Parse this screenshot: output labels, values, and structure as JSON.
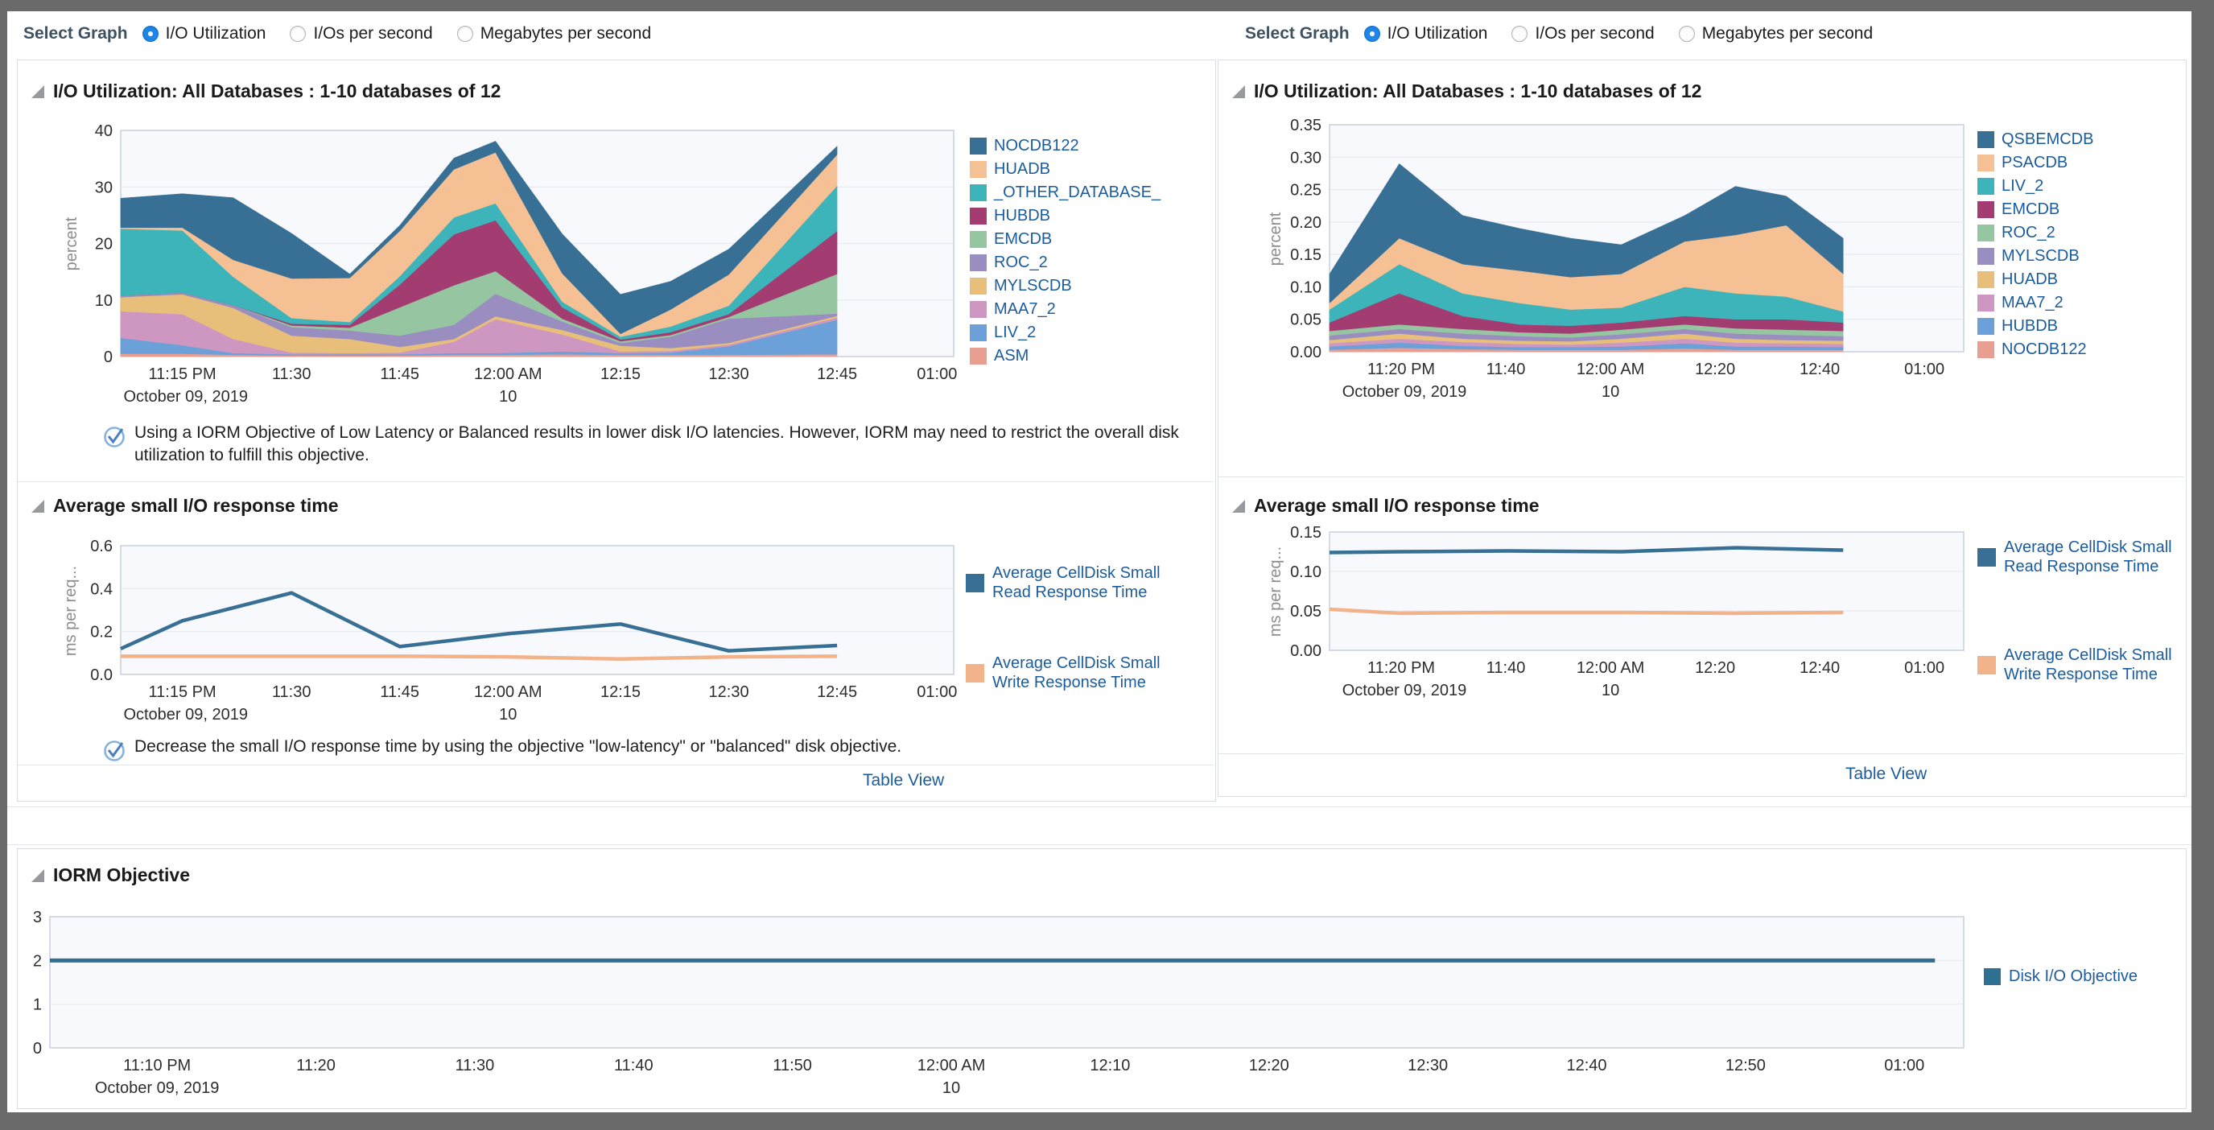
{
  "select_graph": {
    "label": "Select Graph",
    "options": [
      "I/O Utilization",
      "I/Os per second",
      "Megabytes per second"
    ],
    "selected": "I/O Utilization"
  },
  "sections": {
    "io_utilization_title": "I/O Utilization: All Databases : 1-10 databases of 12",
    "response_time_title": "Average small I/O response time",
    "iorm_title": "IORM Objective"
  },
  "notes": {
    "io_note": "Using a IORM Objective of Low Latency or Balanced results in lower disk I/O latencies. However, IORM may need to restrict the overall disk utilization to fulfill this objective.",
    "response_note": "Decrease the small I/O response time by using the objective \"low-latency\" or \"balanced\" disk objective."
  },
  "links": {
    "table_view": "Table View"
  },
  "colors": {
    "accent_blue": "#1e86e8",
    "legend_text": "#1b5c9f",
    "plot_bg": "#f8f9fd",
    "plot_border": "#c8d1de",
    "gridline": "#e3e7ef"
  },
  "chart_data": [
    {
      "id": "io-util-left",
      "type": "area",
      "stacked": true,
      "title": "I/O Utilization: All Databases : 1-10 databases of 12",
      "ylabel": "percent",
      "ylim": [
        0,
        40
      ],
      "yticks": [
        {
          "v": 0,
          "label": "0"
        },
        {
          "v": 10,
          "label": "10"
        },
        {
          "v": 20,
          "label": "20"
        },
        {
          "v": 30,
          "label": "30"
        },
        {
          "v": 40,
          "label": "40"
        }
      ],
      "xticks": [
        {
          "f": 0.074,
          "label": "11:15 PM"
        },
        {
          "f": 0.205,
          "label": "11:30"
        },
        {
          "f": 0.335,
          "label": "11:45"
        },
        {
          "f": 0.465,
          "label": "12:00 AM"
        },
        {
          "f": 0.6,
          "label": "12:15"
        },
        {
          "f": 0.73,
          "label": "12:30"
        },
        {
          "f": 0.86,
          "label": "12:45"
        },
        {
          "f": 0.98,
          "label": "01:00"
        }
      ],
      "xsub": [
        {
          "f": 0.078,
          "label": "October 09, 2019"
        },
        {
          "f": 0.465,
          "label": "10"
        }
      ],
      "x": [
        0,
        0.074,
        0.135,
        0.205,
        0.275,
        0.335,
        0.4,
        0.45,
        0.53,
        0.6,
        0.66,
        0.73,
        0.86
      ],
      "series": [
        {
          "name": "ASM",
          "color": "#e89e91",
          "values": [
            0.5,
            0.5,
            0.3,
            0.2,
            0.2,
            0.2,
            0.3,
            0.3,
            0.4,
            0.3,
            0.3,
            0.3,
            0.4
          ]
        },
        {
          "name": "LIV_2",
          "color": "#6ba0d8",
          "values": [
            2.8,
            1.5,
            0.3,
            0.2,
            0.2,
            0.2,
            0.3,
            0.3,
            0.5,
            0.3,
            0.4,
            1.5,
            6.1
          ]
        },
        {
          "name": "MAA7_2",
          "color": "#cd97c1",
          "values": [
            4.7,
            5.5,
            2.5,
            0.3,
            0.2,
            0.3,
            2.0,
            6.0,
            3.0,
            0.3,
            0.3,
            0.3,
            0.4
          ]
        },
        {
          "name": "MYLSCDB",
          "color": "#e7bf7b",
          "values": [
            2.5,
            3.5,
            5.5,
            3.0,
            2.5,
            1.0,
            0.5,
            0.5,
            0.8,
            1.0,
            0.5,
            0.3,
            0.3
          ]
        },
        {
          "name": "ROC_2",
          "color": "#9a8ec0",
          "values": [
            0.3,
            0.3,
            0.5,
            1.5,
            1.5,
            2.0,
            2.5,
            4.0,
            1.5,
            0.5,
            2.0,
            4.3,
            0.4
          ]
        },
        {
          "name": "EMCDB",
          "color": "#96c6a1",
          "values": [
            0,
            0,
            0,
            0.3,
            0.5,
            5.0,
            7.0,
            4.0,
            0.5,
            0.3,
            0.3,
            0.3,
            7.0
          ]
        },
        {
          "name": "HUBDB",
          "color": "#a33c70",
          "values": [
            0,
            0,
            0,
            0.3,
            0.5,
            4.0,
            9.0,
            9.0,
            2.0,
            0.3,
            0.5,
            0.5,
            7.6
          ]
        },
        {
          "name": "_OTHER_DATABASE_",
          "color": "#3db4b9",
          "values": [
            11.8,
            11.0,
            5.0,
            1.0,
            0.5,
            1.5,
            3.0,
            3.0,
            1.0,
            0.5,
            1.0,
            1.5,
            8.0
          ]
        },
        {
          "name": "HUADB",
          "color": "#f4c094",
          "values": [
            0.2,
            0.5,
            3.0,
            7.0,
            7.8,
            8.0,
            8.5,
            9.0,
            5.0,
            0.5,
            3.0,
            5.5,
            5.5
          ]
        },
        {
          "name": "NOCDB122",
          "color": "#386f94",
          "values": [
            5.2,
            6.0,
            11.0,
            8.0,
            0.7,
            1.0,
            2.0,
            2.0,
            7.0,
            7.0,
            5.0,
            4.5,
            1.5
          ]
        }
      ]
    },
    {
      "id": "io-util-right",
      "type": "area",
      "stacked": true,
      "title": "I/O Utilization: All Databases : 1-10 databases of 12",
      "ylabel": "percent",
      "ylim": [
        0,
        0.35
      ],
      "yticks": [
        {
          "v": 0,
          "label": "0.00"
        },
        {
          "v": 0.05,
          "label": "0.05"
        },
        {
          "v": 0.1,
          "label": "0.10"
        },
        {
          "v": 0.15,
          "label": "0.15"
        },
        {
          "v": 0.2,
          "label": "0.20"
        },
        {
          "v": 0.25,
          "label": "0.25"
        },
        {
          "v": 0.3,
          "label": "0.30"
        },
        {
          "v": 0.35,
          "label": "0.35"
        }
      ],
      "xticks": [
        {
          "f": 0.113,
          "label": "11:20 PM"
        },
        {
          "f": 0.278,
          "label": "11:40"
        },
        {
          "f": 0.443,
          "label": "12:00 AM"
        },
        {
          "f": 0.608,
          "label": "12:20"
        },
        {
          "f": 0.773,
          "label": "12:40"
        },
        {
          "f": 0.938,
          "label": "01:00"
        }
      ],
      "xsub": [
        {
          "f": 0.118,
          "label": "October 09, 2019"
        },
        {
          "f": 0.443,
          "label": "10"
        }
      ],
      "x": [
        0,
        0.11,
        0.21,
        0.3,
        0.38,
        0.46,
        0.56,
        0.64,
        0.72,
        0.81
      ],
      "series": [
        {
          "name": "NOCDB122",
          "color": "#e89e91",
          "values": [
            0.003,
            0.006,
            0.004,
            0.003,
            0.003,
            0.003,
            0.005,
            0.003,
            0.003,
            0.003
          ]
        },
        {
          "name": "HUBDB",
          "color": "#6ba0d8",
          "values": [
            0.005,
            0.008,
            0.005,
            0.004,
            0.004,
            0.005,
            0.008,
            0.005,
            0.005,
            0.004
          ]
        },
        {
          "name": "MAA7_2",
          "color": "#cd97c1",
          "values": [
            0.005,
            0.006,
            0.006,
            0.005,
            0.004,
            0.006,
            0.007,
            0.006,
            0.005,
            0.005
          ]
        },
        {
          "name": "HUADB",
          "color": "#e7bf7b",
          "values": [
            0.005,
            0.008,
            0.005,
            0.005,
            0.005,
            0.006,
            0.008,
            0.006,
            0.005,
            0.005
          ]
        },
        {
          "name": "MYLSCDB",
          "color": "#9a8ec0",
          "values": [
            0.007,
            0.007,
            0.008,
            0.007,
            0.006,
            0.007,
            0.007,
            0.008,
            0.008,
            0.007
          ]
        },
        {
          "name": "ROC_2",
          "color": "#96c6a1",
          "values": [
            0.007,
            0.007,
            0.007,
            0.006,
            0.006,
            0.007,
            0.007,
            0.008,
            0.008,
            0.008
          ]
        },
        {
          "name": "EMCDB",
          "color": "#a33c70",
          "values": [
            0.013,
            0.048,
            0.02,
            0.012,
            0.012,
            0.011,
            0.013,
            0.014,
            0.016,
            0.013
          ]
        },
        {
          "name": "LIV_2",
          "color": "#3db4b9",
          "values": [
            0.02,
            0.045,
            0.035,
            0.033,
            0.025,
            0.023,
            0.045,
            0.04,
            0.035,
            0.017
          ]
        },
        {
          "name": "PSACDB",
          "color": "#f4c094",
          "values": [
            0.01,
            0.04,
            0.045,
            0.05,
            0.05,
            0.052,
            0.07,
            0.09,
            0.11,
            0.058
          ]
        },
        {
          "name": "QSBEMCDB",
          "color": "#386f94",
          "values": [
            0.045,
            0.115,
            0.075,
            0.065,
            0.06,
            0.045,
            0.04,
            0.075,
            0.045,
            0.055
          ]
        }
      ]
    },
    {
      "id": "resp-left",
      "type": "line",
      "stacked": false,
      "title": "Average small I/O response time",
      "ylabel": "ms per req...",
      "ylim": [
        0,
        0.6
      ],
      "yticks": [
        {
          "v": 0,
          "label": "0.0"
        },
        {
          "v": 0.2,
          "label": "0.2"
        },
        {
          "v": 0.4,
          "label": "0.4"
        },
        {
          "v": 0.6,
          "label": "0.6"
        }
      ],
      "xticks": [
        {
          "f": 0.074,
          "label": "11:15 PM"
        },
        {
          "f": 0.205,
          "label": "11:30"
        },
        {
          "f": 0.335,
          "label": "11:45"
        },
        {
          "f": 0.465,
          "label": "12:00 AM"
        },
        {
          "f": 0.6,
          "label": "12:15"
        },
        {
          "f": 0.73,
          "label": "12:30"
        },
        {
          "f": 0.86,
          "label": "12:45"
        },
        {
          "f": 0.98,
          "label": "01:00"
        }
      ],
      "xsub": [
        {
          "f": 0.078,
          "label": "October 09, 2019"
        },
        {
          "f": 0.465,
          "label": "10"
        }
      ],
      "x": [
        0,
        0.074,
        0.205,
        0.335,
        0.465,
        0.6,
        0.73,
        0.86
      ],
      "series": [
        {
          "name": "Average CellDisk Small Read Response Time",
          "color": "#386f94",
          "lw": 4.5,
          "values": [
            0.12,
            0.25,
            0.38,
            0.13,
            0.19,
            0.235,
            0.11,
            0.135
          ]
        },
        {
          "name": "Average CellDisk Small Write Response Time",
          "color": "#f2b28a",
          "lw": 4.5,
          "values": [
            0.085,
            0.085,
            0.085,
            0.085,
            0.082,
            0.072,
            0.082,
            0.085
          ]
        }
      ]
    },
    {
      "id": "resp-right",
      "type": "line",
      "stacked": false,
      "title": "Average small I/O response time",
      "ylabel": "ms per req...",
      "ylim": [
        0,
        0.15
      ],
      "yticks": [
        {
          "v": 0,
          "label": "0.00"
        },
        {
          "v": 0.05,
          "label": "0.05"
        },
        {
          "v": 0.1,
          "label": "0.10"
        },
        {
          "v": 0.15,
          "label": "0.15"
        }
      ],
      "xticks": [
        {
          "f": 0.113,
          "label": "11:20 PM"
        },
        {
          "f": 0.278,
          "label": "11:40"
        },
        {
          "f": 0.443,
          "label": "12:00 AM"
        },
        {
          "f": 0.608,
          "label": "12:20"
        },
        {
          "f": 0.773,
          "label": "12:40"
        },
        {
          "f": 0.938,
          "label": "01:00"
        }
      ],
      "xsub": [
        {
          "f": 0.118,
          "label": "October 09, 2019"
        },
        {
          "f": 0.443,
          "label": "10"
        }
      ],
      "x": [
        0,
        0.11,
        0.28,
        0.46,
        0.64,
        0.81
      ],
      "series": [
        {
          "name": "Average CellDisk Small Read Response Time",
          "color": "#386f94",
          "lw": 4.5,
          "values": [
            0.124,
            0.125,
            0.126,
            0.125,
            0.13,
            0.127
          ]
        },
        {
          "name": "Average CellDisk Small Write Response Time",
          "color": "#f2b28a",
          "lw": 4.5,
          "values": [
            0.052,
            0.047,
            0.048,
            0.048,
            0.047,
            0.048
          ]
        }
      ]
    },
    {
      "id": "iorm",
      "type": "line",
      "stacked": false,
      "title": "IORM Objective",
      "ylabel": "",
      "ylim": [
        0,
        3
      ],
      "yticks": [
        {
          "v": 0,
          "label": "0"
        },
        {
          "v": 1,
          "label": "1"
        },
        {
          "v": 2,
          "label": "2"
        },
        {
          "v": 3,
          "label": "3"
        }
      ],
      "xticks": [
        {
          "f": 0.056,
          "label": "11:10 PM"
        },
        {
          "f": 0.139,
          "label": "11:20"
        },
        {
          "f": 0.222,
          "label": "11:30"
        },
        {
          "f": 0.305,
          "label": "11:40"
        },
        {
          "f": 0.388,
          "label": "11:50"
        },
        {
          "f": 0.471,
          "label": "12:00 AM"
        },
        {
          "f": 0.554,
          "label": "12:10"
        },
        {
          "f": 0.637,
          "label": "12:20"
        },
        {
          "f": 0.72,
          "label": "12:30"
        },
        {
          "f": 0.803,
          "label": "12:40"
        },
        {
          "f": 0.886,
          "label": "12:50"
        },
        {
          "f": 0.969,
          "label": "01:00"
        }
      ],
      "xsub": [
        {
          "f": 0.056,
          "label": "October 09, 2019"
        },
        {
          "f": 0.471,
          "label": "10"
        }
      ],
      "x": [
        0,
        0.985
      ],
      "series": [
        {
          "name": "Disk I/O Objective",
          "color": "#2f6f92",
          "lw": 5,
          "values": [
            2,
            2
          ]
        }
      ]
    }
  ]
}
